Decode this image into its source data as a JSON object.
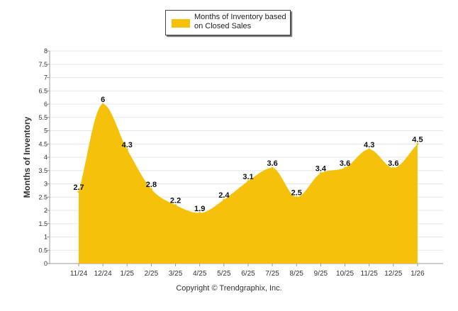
{
  "chart_data": {
    "type": "area",
    "title": "",
    "legend": {
      "label": "Months of Inventory based on Closed Sales",
      "placement": "top-center"
    },
    "ylabel": "Months of Inventory",
    "xlabel": "",
    "ylim": [
      0,
      8
    ],
    "ytick_step": 0.5,
    "yticks": [
      "0",
      "0.5",
      "1",
      "1.5",
      "2",
      "2.5",
      "3",
      "3.5",
      "4",
      "4.5",
      "5",
      "5.5",
      "6",
      "6.5",
      "7",
      "7.5",
      "8"
    ],
    "grid": true,
    "categories": [
      "11/24",
      "12/24",
      "1/25",
      "2/25",
      "3/25",
      "4/25",
      "5/25",
      "6/25",
      "7/25",
      "8/25",
      "9/25",
      "10/25",
      "11/25",
      "12/25",
      "1/26"
    ],
    "series": [
      {
        "name": "Months of Inventory based on Closed Sales",
        "color": "#F6C10A",
        "values": [
          2.7,
          6,
          4.3,
          2.8,
          2.2,
          1.9,
          2.4,
          3.1,
          3.6,
          2.5,
          3.4,
          3.6,
          4.3,
          3.6,
          4.5
        ],
        "labels": [
          "2.7",
          "6",
          "4.3",
          "2.8",
          "2.2",
          "1.9",
          "2.4",
          "3.1",
          "3.6",
          "2.5",
          "3.4",
          "3.6",
          "4.3",
          "3.6",
          "4.5"
        ]
      }
    ]
  },
  "footer": {
    "copyright": "Copyright © Trendgraphix, Inc."
  }
}
